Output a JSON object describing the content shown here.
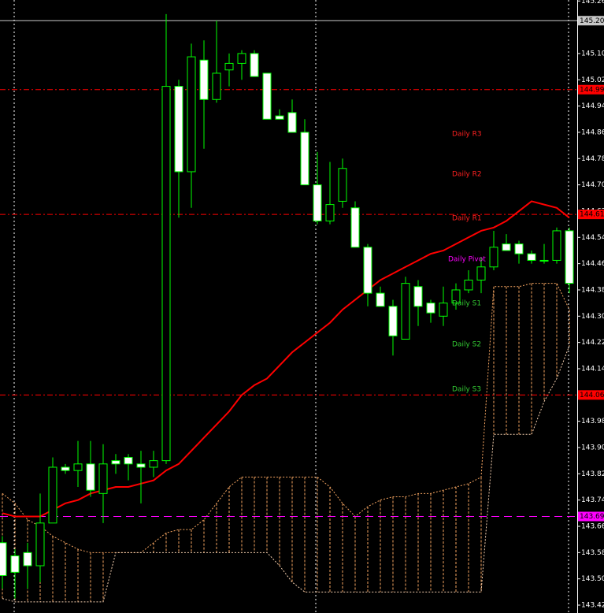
{
  "chart_data": {
    "type": "candlestick",
    "ylim": [
      143.396,
      145.263
    ],
    "yticks": [
      145.26,
      {
        "value": 145.1,
        "label": "145.10"
      },
      145.02,
      144.94,
      144.86,
      144.78,
      {
        "value": 144.7,
        "label": "144.70"
      },
      144.62,
      144.54,
      144.46,
      144.38,
      {
        "value": 144.3,
        "label": "144.30"
      },
      144.22,
      144.14,
      144.06,
      143.98,
      {
        "value": 143.9,
        "label": "143.90"
      },
      143.82,
      143.74,
      143.66,
      143.58,
      {
        "value": 143.5,
        "label": "143.50"
      },
      143.42
    ],
    "up_color": "#00ff00",
    "down_fill": "#ffffff",
    "open": [
      143.61,
      143.57,
      143.58,
      143.54,
      143.67,
      143.84,
      143.83,
      143.85,
      143.76,
      143.86,
      143.87,
      143.85,
      143.84,
      143.86,
      145.0,
      144.74,
      145.08,
      144.96,
      145.05,
      145.07,
      145.1,
      145.04,
      144.91,
      144.92,
      144.86,
      144.7,
      144.59,
      144.65,
      144.63,
      144.51,
      144.37,
      144.33,
      144.23,
      144.39,
      144.34,
      144.3,
      144.34,
      144.38,
      144.41,
      144.45,
      144.52,
      144.52,
      144.49,
      144.47,
      144.47,
      144.56
    ],
    "high": [
      143.63,
      143.59,
      143.61,
      143.76,
      143.87,
      143.85,
      143.92,
      143.92,
      143.91,
      143.88,
      143.88,
      143.89,
      143.89,
      145.22,
      145.02,
      145.13,
      145.14,
      145.2,
      145.1,
      145.11,
      145.11,
      145.04,
      144.93,
      144.96,
      144.9,
      144.8,
      144.77,
      144.78,
      144.65,
      144.52,
      144.39,
      144.35,
      144.42,
      144.41,
      144.35,
      144.39,
      144.4,
      144.44,
      144.48,
      144.56,
      144.55,
      144.53,
      144.5,
      144.52,
      144.57,
      144.57
    ],
    "low": [
      143.47,
      143.44,
      143.47,
      143.49,
      143.67,
      143.82,
      143.78,
      143.75,
      143.67,
      143.82,
      143.8,
      143.73,
      143.81,
      143.85,
      144.6,
      144.63,
      144.81,
      144.95,
      145.0,
      145.02,
      145.03,
      144.9,
      144.9,
      144.86,
      144.7,
      144.58,
      144.58,
      144.63,
      144.51,
      144.33,
      144.33,
      144.18,
      144.23,
      144.27,
      144.28,
      144.27,
      144.32,
      144.37,
      144.37,
      144.44,
      144.5,
      144.46,
      144.46,
      144.46,
      144.46,
      144.37
    ],
    "close": [
      143.51,
      143.52,
      143.54,
      143.67,
      143.84,
      143.83,
      143.85,
      143.77,
      143.85,
      143.85,
      143.85,
      143.84,
      143.86,
      145.0,
      144.74,
      145.09,
      144.96,
      145.04,
      145.07,
      145.1,
      145.03,
      144.9,
      144.9,
      144.86,
      144.7,
      144.59,
      144.64,
      144.75,
      144.51,
      144.37,
      144.33,
      144.24,
      144.4,
      144.33,
      144.31,
      144.34,
      144.38,
      144.41,
      144.45,
      144.51,
      144.5,
      144.49,
      144.47,
      144.47,
      144.56,
      144.4
    ],
    "moving_average": {
      "color": "#ff0000",
      "values": [
        143.7,
        143.69,
        143.69,
        143.69,
        143.71,
        143.73,
        143.74,
        143.76,
        143.77,
        143.78,
        143.78,
        143.79,
        143.8,
        143.83,
        143.85,
        143.89,
        143.93,
        143.97,
        144.01,
        144.06,
        144.09,
        144.11,
        144.15,
        144.19,
        144.22,
        144.25,
        144.28,
        144.32,
        144.35,
        144.38,
        144.41,
        144.43,
        144.45,
        144.47,
        144.49,
        144.5,
        144.52,
        144.54,
        144.56,
        144.57,
        144.59,
        144.62,
        144.65,
        144.64,
        144.63,
        144.6
      ]
    },
    "cloud": {
      "span_a": {
        "color": "#f4a460",
        "values": [
          143.76,
          143.73,
          143.68,
          143.66,
          143.63,
          143.61,
          143.59,
          143.58,
          143.58,
          143.58,
          143.58,
          143.58,
          143.61,
          143.64,
          143.65,
          143.65,
          143.68,
          143.73,
          143.78,
          143.81,
          143.81,
          143.81,
          143.81,
          143.81,
          143.81,
          143.81,
          143.78,
          143.73,
          143.69,
          143.72,
          143.74,
          143.75,
          143.75,
          143.76,
          143.76,
          143.77,
          143.78,
          143.79,
          143.81,
          144.39,
          144.39,
          144.39,
          144.4,
          144.4,
          144.4,
          144.32
        ]
      },
      "span_b": {
        "color": "#f5d0b0",
        "values": [
          143.44,
          143.43,
          143.43,
          143.43,
          143.43,
          143.43,
          143.43,
          143.43,
          143.43,
          143.58,
          143.58,
          143.58,
          143.58,
          143.58,
          143.58,
          143.58,
          143.58,
          143.58,
          143.58,
          143.58,
          143.58,
          143.58,
          143.54,
          143.49,
          143.46,
          143.46,
          143.46,
          143.46,
          143.46,
          143.46,
          143.46,
          143.46,
          143.46,
          143.46,
          143.46,
          143.46,
          143.46,
          143.46,
          143.46,
          143.94,
          143.94,
          143.94,
          143.94,
          144.04,
          144.11,
          144.21
        ]
      }
    },
    "levels": [
      {
        "value": 145.2,
        "label": "145.20",
        "color": "#c8c8c8",
        "line": "solid"
      },
      {
        "value": 144.99,
        "label": "144.99",
        "color": "#ff0000",
        "line": "dashdot"
      },
      {
        "value": 144.61,
        "label": "144.61",
        "color": "#ff0000",
        "line": "dashdot"
      },
      {
        "value": 144.06,
        "label": "144.06",
        "color": "#ff0000",
        "line": "dashdot"
      },
      {
        "value": 143.69,
        "label": "143.69",
        "color": "#ff00ff",
        "line": "dashed"
      }
    ],
    "pivot_labels": [
      {
        "text": "Daily R3",
        "color": "#ff2020"
      },
      {
        "text": "Daily R2",
        "color": "#ff2020"
      },
      {
        "text": "Daily R1",
        "color": "#ff2020"
      },
      {
        "text": "Daily Pivot",
        "color": "#ff00ff"
      },
      {
        "text": "Daily S1",
        "color": "#33cc33"
      },
      {
        "text": "Daily S2",
        "color": "#33cc33"
      },
      {
        "text": "Daily S3",
        "color": "#33cc33"
      }
    ]
  }
}
